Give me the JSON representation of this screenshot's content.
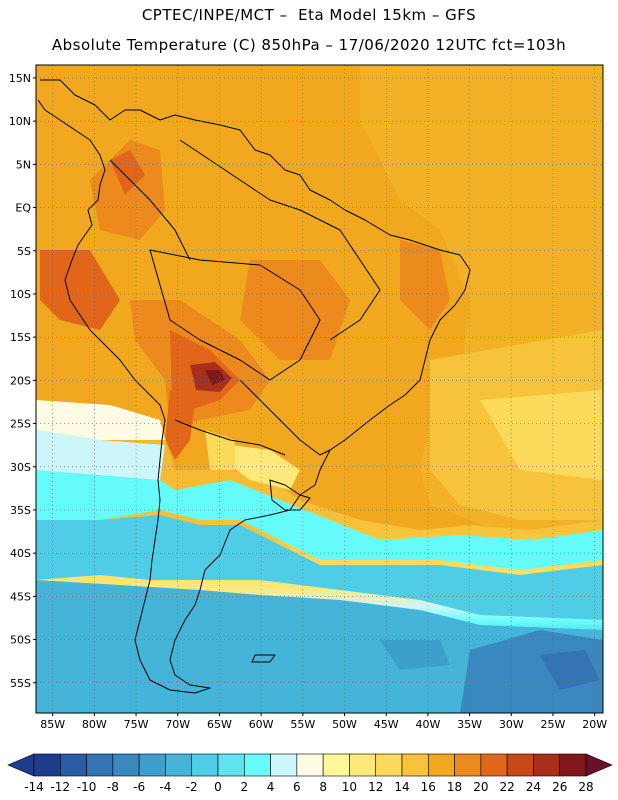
{
  "header": {
    "line1": "CPTEC/INPE/MCT –  Eta Model 15km – GFS",
    "line2": "Absolute Temperature (C) 850hPa – 17/06/2020 12UTC fct=103h"
  },
  "map": {
    "lon_range": [
      -87,
      -19
    ],
    "lat_range": [
      -58.5,
      16.5
    ],
    "lat_labels": [
      {
        "lat": 15,
        "text": "15N"
      },
      {
        "lat": 10,
        "text": "10N"
      },
      {
        "lat": 5,
        "text": "5N"
      },
      {
        "lat": 0,
        "text": "EQ"
      },
      {
        "lat": -5,
        "text": "5S"
      },
      {
        "lat": -10,
        "text": "10S"
      },
      {
        "lat": -15,
        "text": "15S"
      },
      {
        "lat": -20,
        "text": "20S"
      },
      {
        "lat": -25,
        "text": "25S"
      },
      {
        "lat": -30,
        "text": "30S"
      },
      {
        "lat": -35,
        "text": "35S"
      },
      {
        "lat": -40,
        "text": "40S"
      },
      {
        "lat": -45,
        "text": "45S"
      },
      {
        "lat": -50,
        "text": "50S"
      },
      {
        "lat": -55,
        "text": "55S"
      }
    ],
    "lon_labels": [
      {
        "lon": -85,
        "text": "85W"
      },
      {
        "lon": -80,
        "text": "80W"
      },
      {
        "lon": -75,
        "text": "75W"
      },
      {
        "lon": -70,
        "text": "70W"
      },
      {
        "lon": -65,
        "text": "65W"
      },
      {
        "lon": -60,
        "text": "60W"
      },
      {
        "lon": -55,
        "text": "55W"
      },
      {
        "lon": -50,
        "text": "50W"
      },
      {
        "lon": -45,
        "text": "45W"
      },
      {
        "lon": -40,
        "text": "40W"
      },
      {
        "lon": -35,
        "text": "35W"
      },
      {
        "lon": -30,
        "text": "30W"
      },
      {
        "lon": -25,
        "text": "25W"
      },
      {
        "lon": -20,
        "text": "20W"
      }
    ],
    "grid": "dotted"
  },
  "colorbar": {
    "levels": [
      "-14",
      "-12",
      "-10",
      "-8",
      "-6",
      "-4",
      "-2",
      "0",
      "2",
      "4",
      "6",
      "8",
      "10",
      "12",
      "14",
      "16",
      "18",
      "20",
      "22",
      "24",
      "26",
      "28"
    ],
    "colors": [
      "#1f3d8c",
      "#1f3d8c",
      "#2b5aa6",
      "#3474b4",
      "#3b88bf",
      "#3d9fcb",
      "#45b4d9",
      "#4fcde6",
      "#5fe3ef",
      "#66fbfb",
      "#ccf6f9",
      "#fffbe4",
      "#fdf79a",
      "#fde97a",
      "#fbd95a",
      "#f6c33a",
      "#f1a81f",
      "#ec8a1d",
      "#e2661a",
      "#c94817",
      "#a8301b",
      "#82171a",
      "#6b0f2a"
    ]
  }
}
